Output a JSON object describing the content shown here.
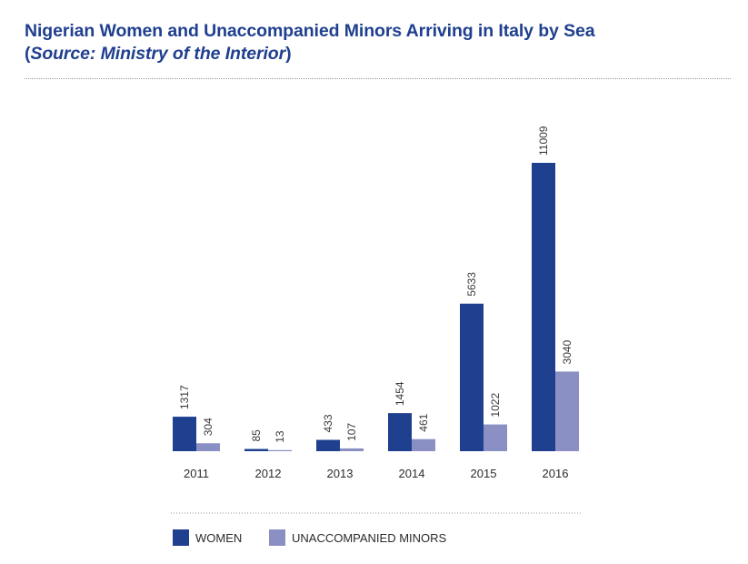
{
  "header": {
    "title": "Nigerian Women and Unaccompanied Minors Arriving in Italy by Sea",
    "source_open": "(",
    "source_text": "Source: Ministry of the Interior",
    "source_close": ")"
  },
  "chart_data": {
    "type": "bar",
    "title": "Nigerian Women and Unaccompanied Minors Arriving in Italy by Sea",
    "subtitle": "(Source: Ministry of the Interior)",
    "xlabel": "",
    "ylabel": "",
    "categories": [
      "2011",
      "2012",
      "2013",
      "2014",
      "2015",
      "2016"
    ],
    "series": [
      {
        "name": "WOMEN",
        "color": "#1f3f8f",
        "values": [
          1317,
          85,
          433,
          1454,
          5633,
          11009
        ]
      },
      {
        "name": "UNACCOMPANIED MINORS",
        "color": "#8a90c4",
        "values": [
          304,
          13,
          107,
          461,
          1022,
          3040
        ]
      }
    ],
    "ylim": [
      0,
      11009
    ],
    "grid": false,
    "legend": "bottom-left"
  }
}
